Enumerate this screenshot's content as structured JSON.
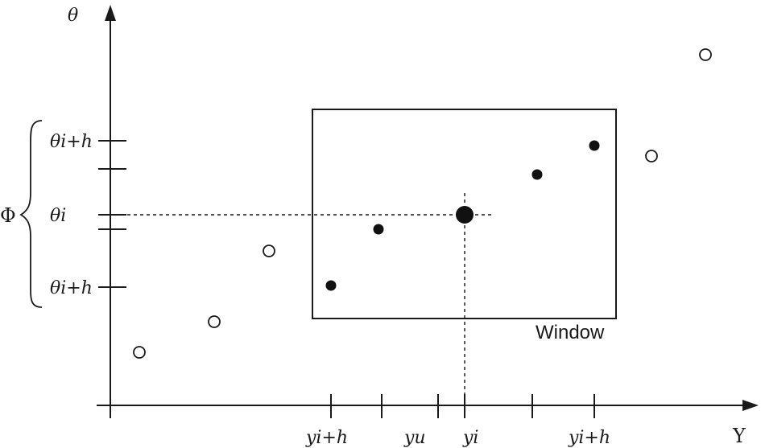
{
  "axes": {
    "vertical_label": "θ",
    "horizontal_label": "Y"
  },
  "theta_labels": [
    "θi+h",
    "θi",
    "θi+h"
  ],
  "bracket_label": "Φ",
  "y_labels": [
    "yi+h",
    "yu",
    "yi",
    "yi+h"
  ],
  "window_label": "Window",
  "points": {
    "outside_open": 5,
    "inside_filled": 5,
    "highlighted_center": 1
  }
}
